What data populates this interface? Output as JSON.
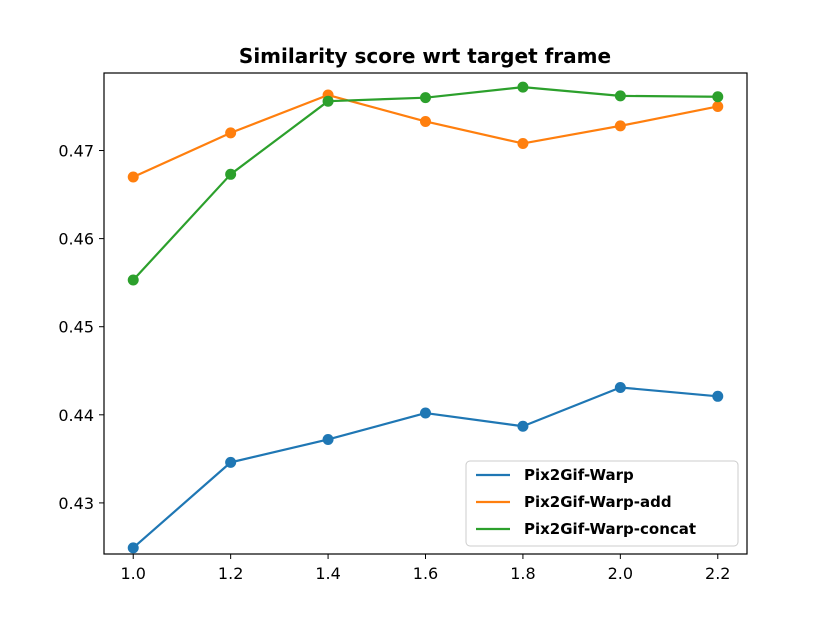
{
  "chart_data": {
    "type": "line",
    "title": "Similarity score wrt target frame",
    "xlabel": "",
    "ylabel": "",
    "x": [
      1.0,
      1.2,
      1.4,
      1.6,
      1.8,
      2.0,
      2.2
    ],
    "x_tick_labels": [
      "1.0",
      "1.2",
      "1.4",
      "1.6",
      "1.8",
      "2.0",
      "2.2"
    ],
    "y_tick_values": [
      0.43,
      0.44,
      0.45,
      0.46,
      0.47
    ],
    "y_tick_labels": [
      "0.43",
      "0.44",
      "0.45",
      "0.46",
      "0.47"
    ],
    "xlim": [
      0.94,
      2.26
    ],
    "ylim": [
      0.4242,
      0.4788
    ],
    "grid": false,
    "legend_position": "lower-right",
    "series": [
      {
        "name": "Pix2Gif-Warp",
        "color": "#1f77b4",
        "values": [
          0.4249,
          0.4346,
          0.4372,
          0.4402,
          0.4387,
          0.4431,
          0.4421
        ]
      },
      {
        "name": "Pix2Gif-Warp-add",
        "color": "#ff7f0e",
        "values": [
          0.467,
          0.472,
          0.4763,
          0.4733,
          0.4708,
          0.4728,
          0.475
        ]
      },
      {
        "name": "Pix2Gif-Warp-concat",
        "color": "#2ca02c",
        "values": [
          0.4553,
          0.4673,
          0.4756,
          0.476,
          0.4772,
          0.4762,
          0.4761
        ]
      }
    ]
  }
}
